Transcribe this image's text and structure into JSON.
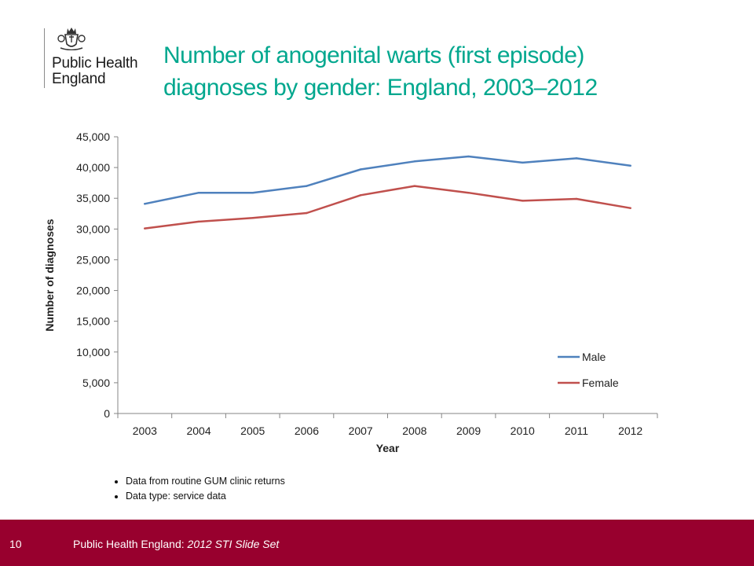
{
  "logo": {
    "line1": "Public Health",
    "line2": "England",
    "crest_icon": "royal-crest-icon"
  },
  "title": {
    "line1": "Number of anogenital warts (first episode)",
    "line2": "diagnoses by gender: England, 2003–2012"
  },
  "notes": [
    "Data from routine GUM clinic returns",
    "Data type: service data"
  ],
  "footer": {
    "slide_number": "10",
    "source_prefix": "Public Health England: ",
    "source_title": "2012 STI Slide Set",
    "background_color": "#98002e"
  },
  "chart_data": {
    "type": "line",
    "title": "",
    "xlabel": "Year",
    "ylabel": "Number of diagnoses",
    "categories": [
      "2003",
      "2004",
      "2005",
      "2006",
      "2007",
      "2008",
      "2009",
      "2010",
      "2011",
      "2012"
    ],
    "ylim": [
      0,
      45000
    ],
    "yticks": [
      0,
      5000,
      10000,
      15000,
      20000,
      25000,
      30000,
      35000,
      40000,
      45000
    ],
    "ytick_labels": [
      "0",
      "5,000",
      "10,000",
      "15,000",
      "20,000",
      "25,000",
      "30,000",
      "35,000",
      "40,000",
      "45,000"
    ],
    "grid": false,
    "legend_position": "bottom-right",
    "series": [
      {
        "name": "Male",
        "color": "#4f81bd",
        "values": [
          34100,
          35900,
          35900,
          37000,
          39700,
          41000,
          41800,
          40800,
          41500,
          40300
        ]
      },
      {
        "name": "Female",
        "color": "#c0504d",
        "values": [
          30100,
          31200,
          31800,
          32600,
          35500,
          37000,
          35900,
          34600,
          34900,
          33400
        ]
      }
    ]
  }
}
